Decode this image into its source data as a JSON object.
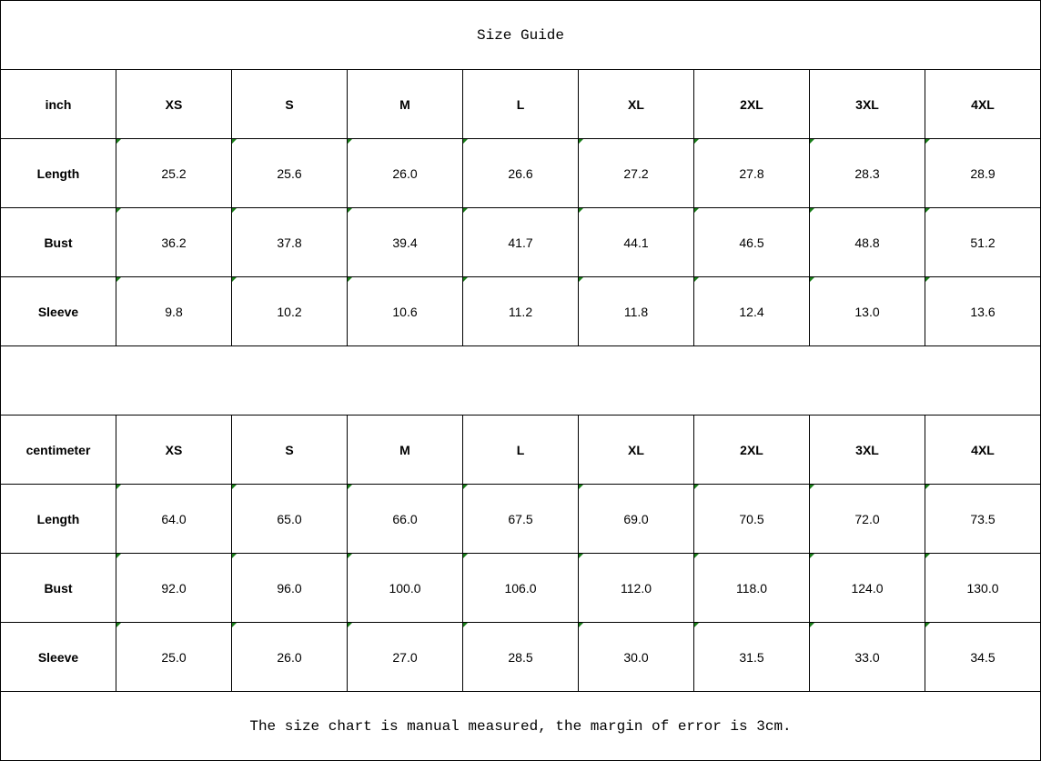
{
  "title": "Size Guide",
  "sizes": [
    "XS",
    "S",
    "M",
    "L",
    "XL",
    "2XL",
    "3XL",
    "4XL"
  ],
  "tables": [
    {
      "unit": "inch",
      "rows": [
        {
          "label": "Length",
          "values": [
            "25.2",
            "25.6",
            "26.0",
            "26.6",
            "27.2",
            "27.8",
            "28.3",
            "28.9"
          ]
        },
        {
          "label": "Bust",
          "values": [
            "36.2",
            "37.8",
            "39.4",
            "41.7",
            "44.1",
            "46.5",
            "48.8",
            "51.2"
          ]
        },
        {
          "label": "Sleeve",
          "values": [
            "9.8",
            "10.2",
            "10.6",
            "11.2",
            "11.8",
            "12.4",
            "13.0",
            "13.6"
          ]
        }
      ]
    },
    {
      "unit": "centimeter",
      "rows": [
        {
          "label": "Length",
          "values": [
            "64.0",
            "65.0",
            "66.0",
            "67.5",
            "69.0",
            "70.5",
            "72.0",
            "73.5"
          ]
        },
        {
          "label": "Bust",
          "values": [
            "92.0",
            "96.0",
            "100.0",
            "106.0",
            "112.0",
            "118.0",
            "124.0",
            "130.0"
          ]
        },
        {
          "label": "Sleeve",
          "values": [
            "25.0",
            "26.0",
            "27.0",
            "28.5",
            "30.0",
            "31.5",
            "33.0",
            "34.5"
          ]
        }
      ]
    }
  ],
  "footer": "The size chart is manual measured, the margin of error is 3cm.",
  "colors": {
    "cell_marker": "#1a7f1a",
    "border": "#000000"
  }
}
